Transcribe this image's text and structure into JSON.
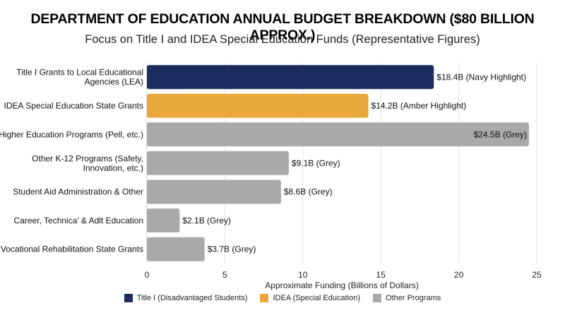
{
  "chart_data": {
    "type": "bar",
    "orientation": "horizontal",
    "title": "DEPARTMENT OF EDUCATION ANNUAL BUDGET BREAKDOWN ($80 BILLION APPROX.)",
    "subtitle": "Focus on Title I and IDEA Special Education Funds (Representative Figures)",
    "xlabel": "Approximate Funding (Billions of Dollars)",
    "ylabel": "",
    "xlim": [
      0,
      25
    ],
    "xticks": [
      "0",
      "5",
      "10",
      "15",
      "20",
      "25"
    ],
    "grid": true,
    "legend_position": "bottom",
    "categories": [
      [
        "Title I Grants to Local Educational",
        "Agencies (LEA)"
      ],
      [
        "IDEA Special Education State Grants"
      ],
      [
        "Higher Education Programs (Pell, etc.)"
      ],
      [
        "Other K-12 Programs (Safety,",
        "Innovation, etc.)"
      ],
      [
        "Student Aid Administration & Other"
      ],
      [
        "Career, Technica’ & Adlt Education"
      ],
      [
        "Vocational Rehabilitation State Grants"
      ]
    ],
    "values": [
      18.4,
      14.2,
      24.5,
      9.1,
      8.6,
      2.1,
      3.7
    ],
    "groups": [
      "title1",
      "idea",
      "other",
      "other",
      "other",
      "other",
      "other"
    ],
    "data_labels": [
      "$18.4B (Navy Highlight)",
      "$14.2B (Amber Highlight)",
      "$24.5B (Grey)",
      "$9.1B (Grey)",
      "$8.6B (Grey)",
      "$2.1B (Grey)",
      "$3.7B (Grey)"
    ],
    "legend": [
      {
        "key": "title1",
        "name": "Title I (Disadvantaged Students)",
        "color": "#1c2c5e"
      },
      {
        "key": "idea",
        "name": "IDEA (Special Education)",
        "color": "#e8a83a"
      },
      {
        "key": "other",
        "name": "Other Programs",
        "color": "#a9a9a9"
      }
    ]
  }
}
